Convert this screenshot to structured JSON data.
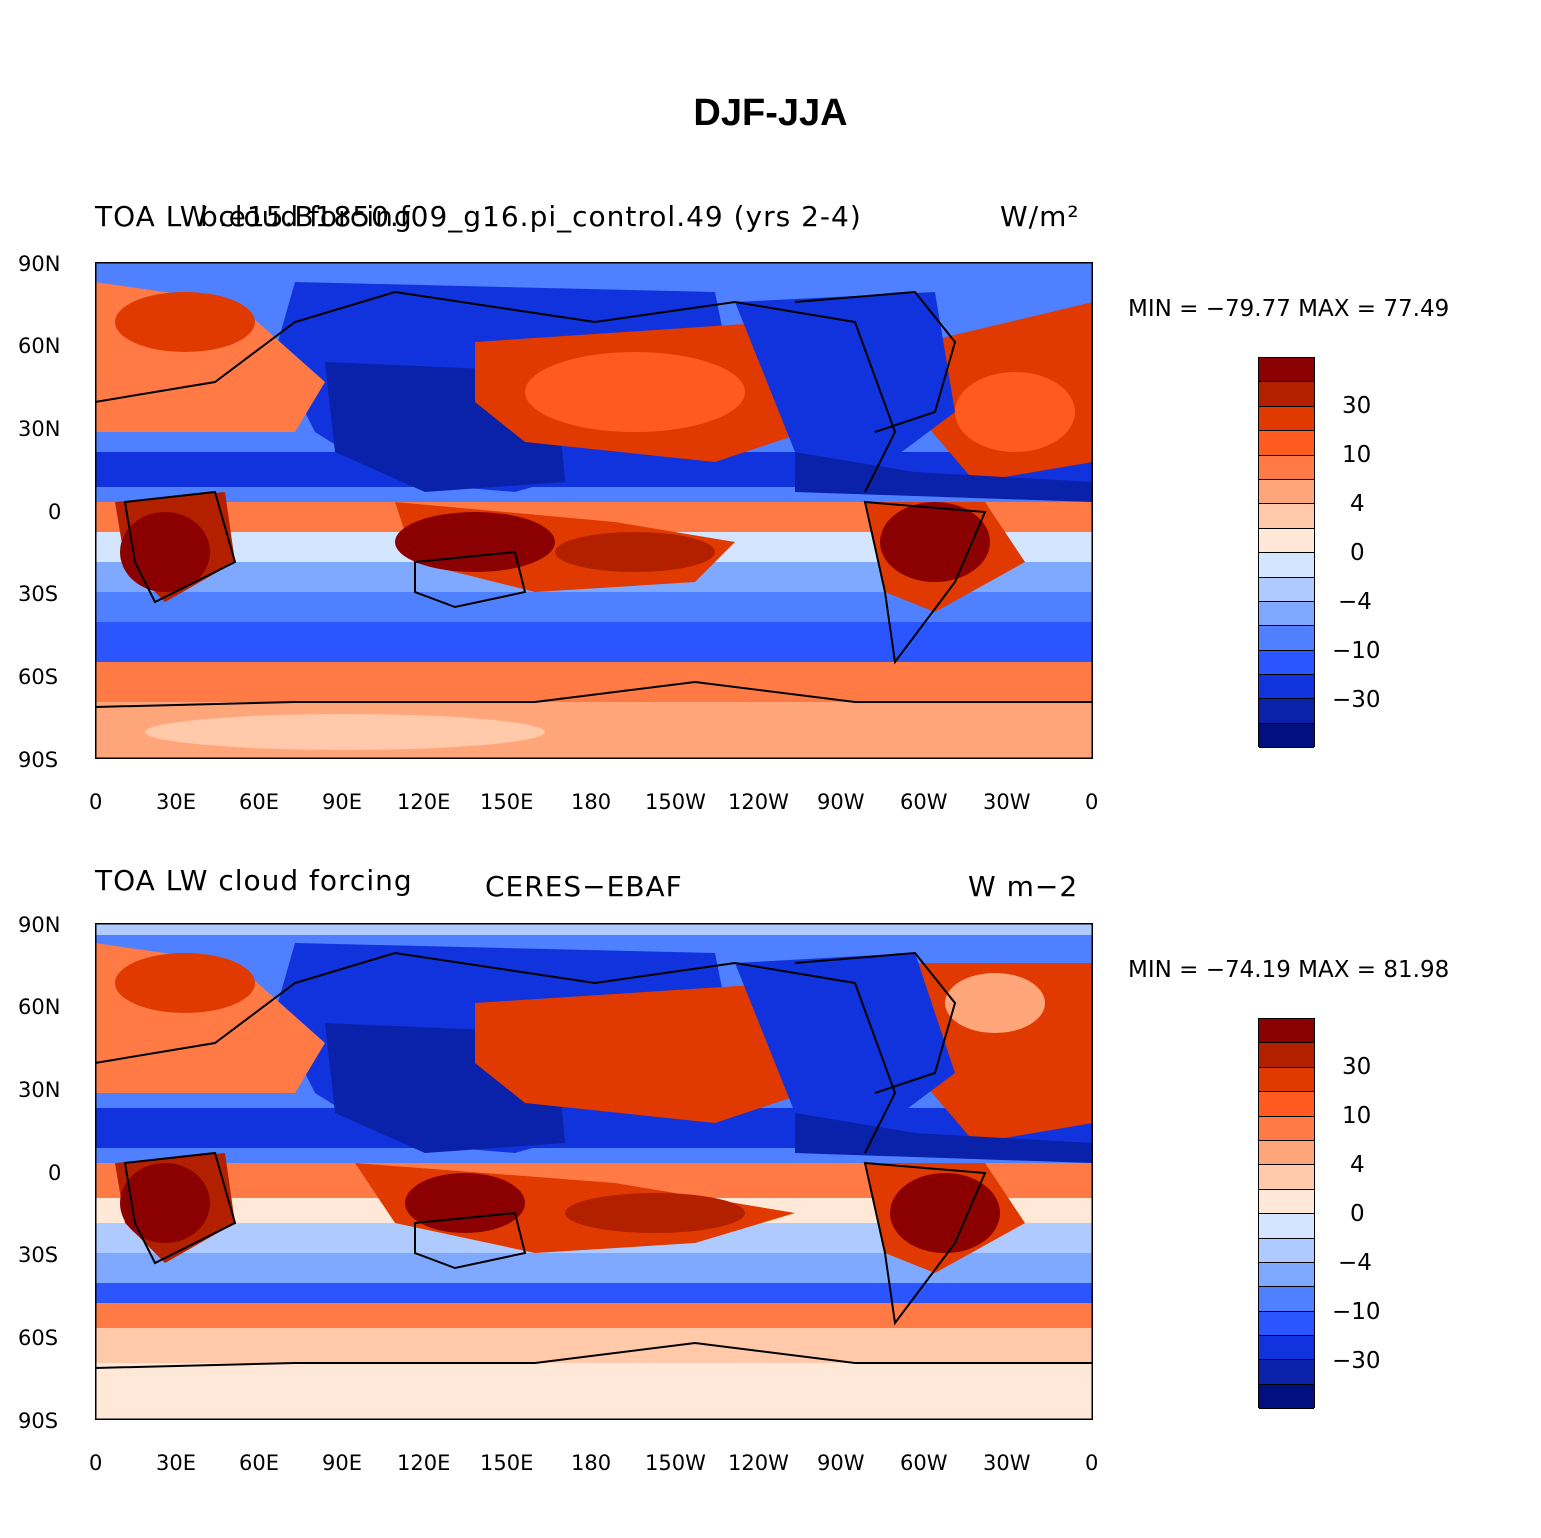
{
  "figure_title": "DJF-JJA",
  "colorbar": {
    "colors": [
      "#8b0000",
      "#b22000",
      "#e03a00",
      "#ff5a20",
      "#ff7a45",
      "#ffa57a",
      "#ffc9aa",
      "#ffe8d8",
      "#d4e6ff",
      "#aecaff",
      "#7fa8ff",
      "#4f80ff",
      "#2a55ff",
      "#1133dd",
      "#0a22aa",
      "#00107f"
    ],
    "labels": [
      "30",
      "10",
      "4",
      "0",
      "−4",
      "−10",
      "−30"
    ]
  },
  "axes": {
    "lat_labels": [
      "90N",
      "60N",
      "30N",
      "0",
      "30S",
      "60S",
      "90S"
    ],
    "lon_labels": [
      "0",
      "30E",
      "60E",
      "90E",
      "120E",
      "150E",
      "180",
      "150W",
      "120W",
      "90W",
      "60W",
      "30W",
      "0"
    ]
  },
  "panels": [
    {
      "left_title": "TOA LW cloud forcing",
      "center_title": "b.e15.B1850.f09_g16.pi_control.49 (yrs 2-4)",
      "right_title": "W/m²",
      "minmax": "MIN = −79.77  MAX =   77.49"
    },
    {
      "left_title": "TOA LW cloud forcing",
      "center_title": "CERES−EBAF",
      "right_title": "W m−2",
      "minmax": "MIN = −74.19  MAX =   81.98"
    }
  ]
}
